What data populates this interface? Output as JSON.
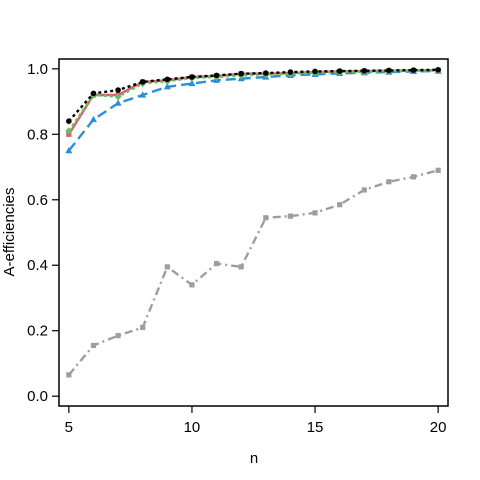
{
  "chart_data": {
    "type": "line",
    "title": "",
    "xlabel": "n",
    "ylabel": "A-efficiencies",
    "xlim": [
      4.6,
      20.4
    ],
    "ylim": [
      -0.03,
      1.03
    ],
    "x_ticks": [
      5,
      10,
      15,
      20
    ],
    "y_ticks": [
      0.0,
      0.2,
      0.4,
      0.6,
      0.8,
      1.0
    ],
    "x_tick_labels": [
      "5",
      "10",
      "15",
      "20"
    ],
    "y_tick_labels": [
      "0.0",
      "0.2",
      "0.4",
      "0.6",
      "0.8",
      "1.0"
    ],
    "grid": false,
    "legend": false,
    "x": [
      5,
      6,
      7,
      8,
      9,
      10,
      11,
      12,
      13,
      14,
      15,
      16,
      17,
      18,
      19,
      20
    ],
    "series": [
      {
        "color": "#9E9E9E",
        "dash": "8,4,2,4",
        "marker": "square",
        "values": [
          0.065,
          0.155,
          0.185,
          0.21,
          0.395,
          0.34,
          0.405,
          0.395,
          0.545,
          0.55,
          0.56,
          0.585,
          0.63,
          0.655,
          0.67,
          0.69
        ]
      },
      {
        "color": "#2B8FD8",
        "dash": "10,5",
        "marker": "triangle",
        "values": [
          0.75,
          0.845,
          0.895,
          0.92,
          0.945,
          0.955,
          0.965,
          0.97,
          0.975,
          0.98,
          0.983,
          0.986,
          0.988,
          0.99,
          0.992,
          0.993
        ]
      },
      {
        "color": "#E05A6E",
        "dash": "",
        "marker": "square",
        "values": [
          0.8,
          0.92,
          0.92,
          0.96,
          0.965,
          0.975,
          0.978,
          0.985,
          0.985,
          0.987,
          0.99,
          0.992,
          0.993,
          0.994,
          0.995,
          0.996
        ]
      },
      {
        "color": "#62C162",
        "dash": "3,3",
        "marker": "diamond",
        "values": [
          0.81,
          0.92,
          0.915,
          0.955,
          0.962,
          0.972,
          0.975,
          0.98,
          0.983,
          0.985,
          0.988,
          0.99,
          0.991,
          0.993,
          0.994,
          0.995
        ]
      },
      {
        "color": "#000000",
        "dash": "3,3",
        "marker": "circle",
        "values": [
          0.84,
          0.925,
          0.935,
          0.96,
          0.968,
          0.975,
          0.98,
          0.985,
          0.987,
          0.99,
          0.992,
          0.993,
          0.994,
          0.995,
          0.996,
          0.997
        ]
      }
    ]
  }
}
